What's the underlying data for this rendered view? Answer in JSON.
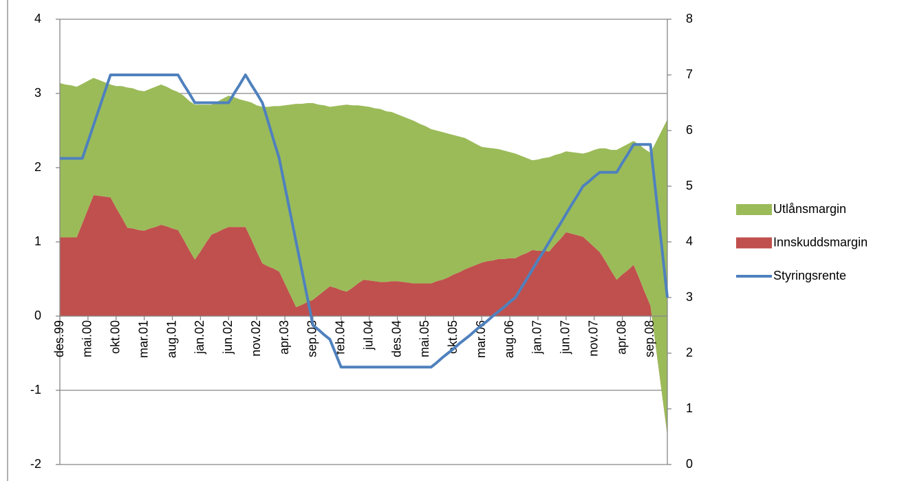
{
  "chart_data": {
    "type": "stacked-area-line",
    "categories": [
      "des.99",
      null,
      null,
      null,
      null,
      "mai.00",
      null,
      null,
      null,
      null,
      "okt.00",
      null,
      null,
      null,
      null,
      "mar.01",
      null,
      null,
      null,
      null,
      "aug.01",
      null,
      null,
      null,
      null,
      "jan.02",
      null,
      null,
      null,
      null,
      "jun.02",
      null,
      null,
      null,
      null,
      "nov.02",
      null,
      null,
      null,
      null,
      "apr.03",
      null,
      null,
      null,
      null,
      "sep.03",
      null,
      null,
      null,
      null,
      "feb.04",
      null,
      null,
      null,
      null,
      "jul.04",
      null,
      null,
      null,
      null,
      "des.04",
      null,
      null,
      null,
      null,
      "mai.05",
      null,
      null,
      null,
      null,
      "okt.05",
      null,
      null,
      null,
      null,
      "mar.06",
      null,
      null,
      null,
      null,
      "aug.06",
      null,
      null,
      null,
      null,
      "jan.07",
      null,
      null,
      null,
      null,
      "jun.07",
      null,
      null,
      null,
      null,
      "nov.07",
      null,
      null,
      null,
      null,
      "apr.08",
      null,
      null,
      null,
      null,
      "sep.08",
      null,
      null,
      null
    ],
    "series": [
      {
        "name": "Utlånsmargin",
        "type": "area",
        "color": "#9bbb59",
        "values": [
          2.08,
          2.06,
          2.05,
          2.03,
          1.88,
          1.73,
          1.58,
          1.56,
          1.54,
          1.52,
          1.64,
          1.77,
          1.89,
          1.89,
          1.88,
          1.88,
          1.88,
          1.89,
          1.89,
          1.88,
          1.87,
          1.86,
          1.94,
          2.01,
          2.09,
          1.98,
          1.86,
          1.75,
          1.76,
          1.76,
          1.77,
          1.75,
          1.72,
          1.7,
          1.84,
          1.97,
          2.11,
          2.15,
          2.19,
          2.23,
          2.4,
          2.57,
          2.74,
          2.71,
          2.68,
          2.65,
          2.57,
          2.5,
          2.42,
          2.45,
          2.49,
          2.52,
          2.46,
          2.4,
          2.34,
          2.34,
          2.33,
          2.33,
          2.3,
          2.28,
          2.25,
          2.23,
          2.21,
          2.19,
          2.15,
          2.12,
          2.08,
          2.03,
          1.99,
          1.94,
          1.88,
          1.83,
          1.77,
          1.7,
          1.63,
          1.56,
          1.53,
          1.51,
          1.48,
          1.46,
          1.43,
          1.41,
          1.34,
          1.28,
          1.21,
          1.23,
          1.25,
          1.27,
          1.21,
          1.15,
          1.09,
          1.1,
          1.11,
          1.12,
          1.21,
          1.31,
          1.4,
          1.52,
          1.63,
          1.75,
          1.72,
          1.7,
          1.67,
          1.8,
          1.93,
          2.06,
          2.79,
          3.52,
          4.25
        ]
      },
      {
        "name": "Innskuddsmargin",
        "type": "area",
        "color": "#c0504d",
        "values": [
          1.06,
          1.06,
          1.06,
          1.06,
          1.25,
          1.44,
          1.63,
          1.62,
          1.61,
          1.6,
          1.46,
          1.33,
          1.19,
          1.18,
          1.16,
          1.15,
          1.18,
          1.2,
          1.23,
          1.21,
          1.18,
          1.16,
          1.03,
          0.89,
          0.76,
          0.87,
          0.99,
          1.1,
          1.13,
          1.17,
          1.2,
          1.2,
          1.2,
          1.2,
          1.04,
          0.87,
          0.71,
          0.67,
          0.64,
          0.6,
          0.44,
          0.28,
          0.12,
          0.15,
          0.19,
          0.22,
          0.28,
          0.34,
          0.4,
          0.38,
          0.35,
          0.33,
          0.38,
          0.44,
          0.49,
          0.48,
          0.47,
          0.46,
          0.46,
          0.47,
          0.47,
          0.46,
          0.45,
          0.44,
          0.44,
          0.44,
          0.44,
          0.47,
          0.49,
          0.52,
          0.56,
          0.59,
          0.63,
          0.66,
          0.69,
          0.72,
          0.74,
          0.75,
          0.77,
          0.77,
          0.78,
          0.78,
          0.82,
          0.85,
          0.89,
          0.88,
          0.88,
          0.87,
          0.96,
          1.04,
          1.13,
          1.11,
          1.09,
          1.07,
          1,
          0.93,
          0.86,
          0.74,
          0.61,
          0.49,
          0.56,
          0.62,
          0.69,
          0.51,
          0.32,
          0.14,
          -0.44,
          -1.02,
          -1.6
        ]
      },
      {
        "name": "Styringsrente",
        "type": "line",
        "axis": "y2",
        "color": "#4f81bd",
        "values": [
          5.5,
          5.5,
          5.5,
          5.5,
          5.5,
          5.8,
          6.1,
          6.4,
          6.7,
          7,
          7,
          7,
          7,
          7,
          7,
          7,
          7,
          7,
          7,
          7,
          7,
          7,
          6.83,
          6.67,
          6.5,
          6.5,
          6.5,
          6.5,
          6.5,
          6.5,
          6.5,
          6.67,
          6.83,
          7,
          6.83,
          6.67,
          6.5,
          6.17,
          5.83,
          5.5,
          5,
          4.5,
          4,
          3.5,
          3,
          2.5,
          2.42,
          2.33,
          2.25,
          2,
          1.75,
          1.75,
          1.75,
          1.75,
          1.75,
          1.75,
          1.75,
          1.75,
          1.75,
          1.75,
          1.75,
          1.75,
          1.75,
          1.75,
          1.75,
          1.75,
          1.75,
          1.83,
          1.92,
          2,
          2.08,
          2.17,
          2.25,
          2.33,
          2.42,
          2.5,
          2.58,
          2.67,
          2.75,
          2.83,
          2.92,
          3,
          3.17,
          3.33,
          3.5,
          3.67,
          3.83,
          4,
          4.17,
          4.33,
          4.5,
          4.67,
          4.83,
          5,
          5.08,
          5.17,
          5.25,
          5.25,
          5.25,
          5.25,
          5.42,
          5.58,
          5.75,
          5.75,
          5.75,
          5.75,
          4.83,
          3.92,
          3
        ]
      }
    ],
    "ylim": [
      -2,
      4
    ],
    "yticks": [
      -2,
      -1,
      0,
      1,
      2,
      3,
      4
    ],
    "y2lim": [
      0,
      8
    ],
    "y2ticks": [
      0,
      1,
      2,
      3,
      4,
      5,
      6,
      7,
      8
    ],
    "grid": true,
    "legend": "right"
  }
}
